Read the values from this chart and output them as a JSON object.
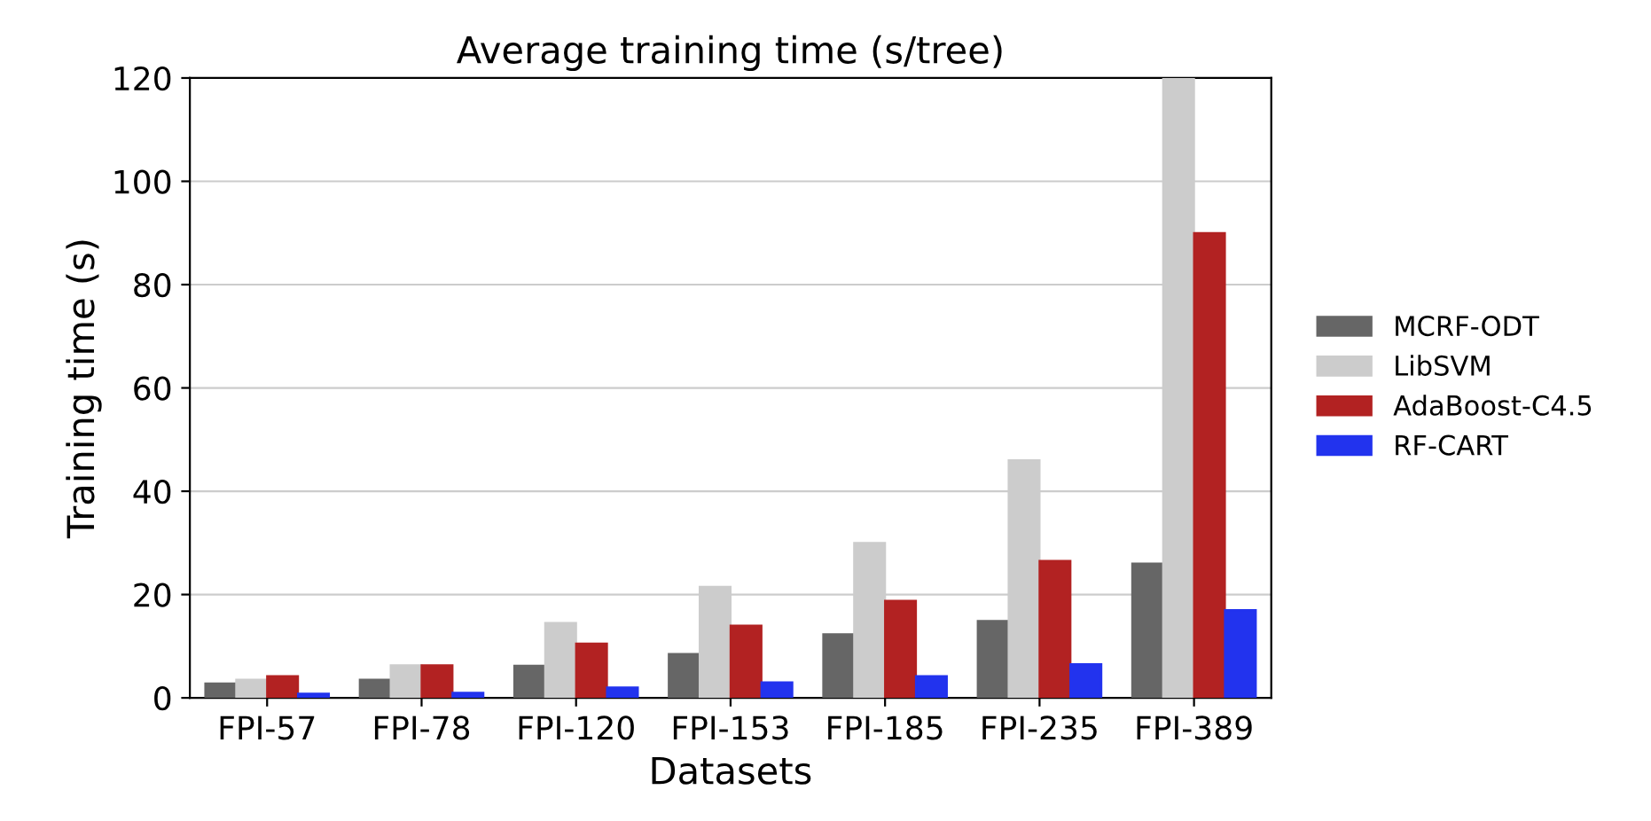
{
  "chart_data": {
    "type": "bar",
    "title": "Average training time (s/tree)",
    "xlabel": "Datasets",
    "ylabel": "Training time (s)",
    "categories": [
      "FPI-57",
      "FPI-78",
      "FPI-120",
      "FPI-153",
      "FPI-185",
      "FPI-235",
      "FPI-389"
    ],
    "series": [
      {
        "name": "MCRF-ODT",
        "color": "#666666",
        "values": [
          2.8,
          3.5,
          6.2,
          8.5,
          12.3,
          14.9,
          26
        ]
      },
      {
        "name": "LibSVM",
        "color": "#cccccc",
        "values": [
          3.5,
          6.3,
          14.5,
          21.5,
          30,
          46,
          120
        ]
      },
      {
        "name": "AdaBoost-C4.5",
        "color": "#b22222",
        "values": [
          4.2,
          6.3,
          10.5,
          14,
          18.8,
          26.5,
          90
        ]
      },
      {
        "name": "RF-CART",
        "color": "#2233ee",
        "values": [
          0.8,
          1.0,
          2.0,
          3.0,
          4.2,
          6.5,
          17
        ]
      }
    ],
    "ylim": [
      0,
      120
    ],
    "yticks": [
      0,
      20,
      40,
      60,
      80,
      100,
      120
    ],
    "grid": "y",
    "legend": "right"
  }
}
